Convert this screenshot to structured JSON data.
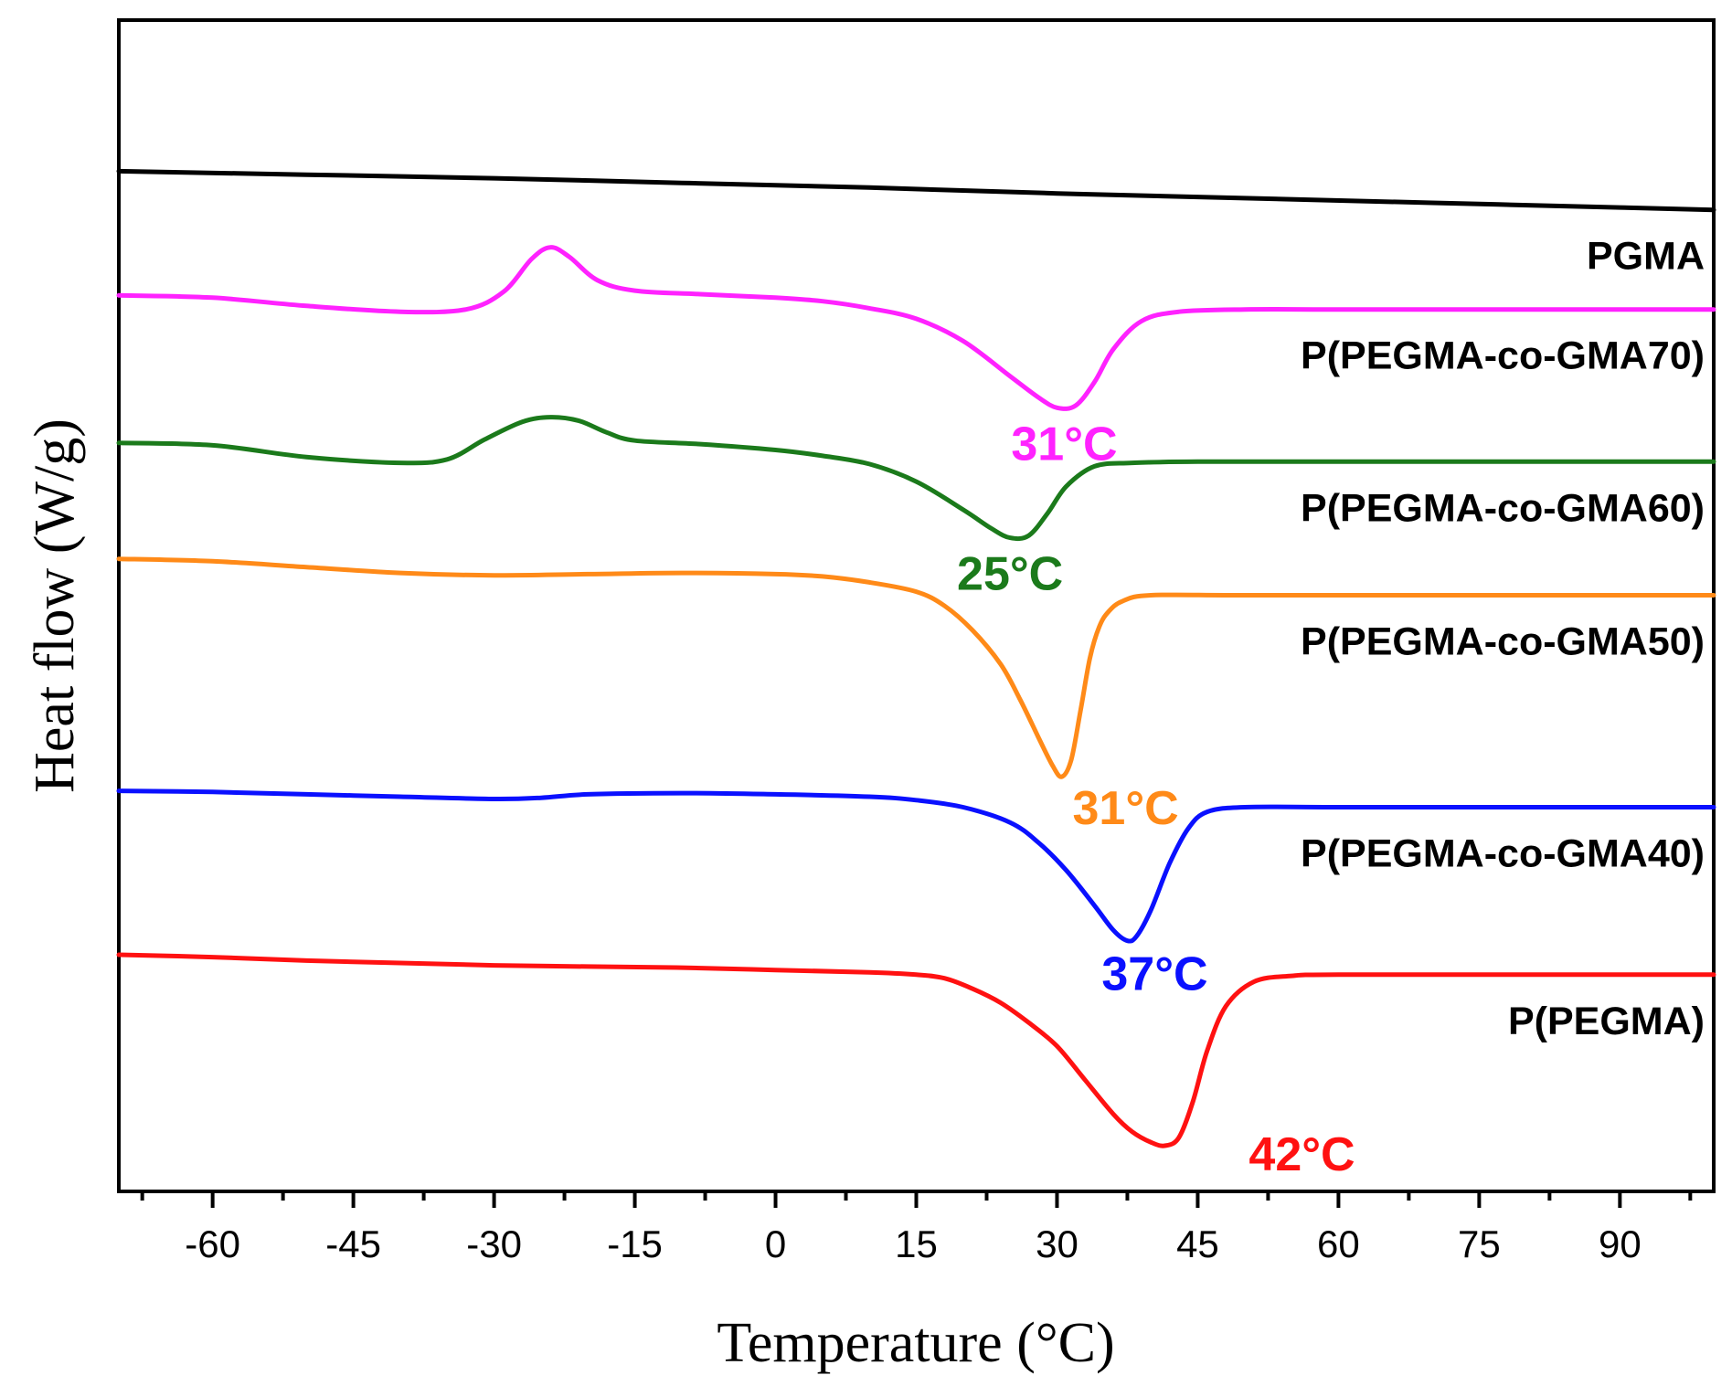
{
  "chart_data": {
    "type": "line",
    "xlabel": "Temperature (°C)",
    "ylabel": "Heat flow (W/g)",
    "xlim": [
      -70,
      100
    ],
    "x_ticks": [
      -60,
      -45,
      -30,
      -15,
      0,
      15,
      30,
      45,
      60,
      75,
      90
    ],
    "x_tick_labels": [
      "-60",
      "-45",
      "-30",
      "-15",
      "0",
      "15",
      "30",
      "45",
      "60",
      "75",
      "90"
    ],
    "ylim": [
      0,
      100
    ],
    "y_ticks_shown": false,
    "grid": false,
    "legend": "none (series labelled directly on the plot)",
    "series": [
      {
        "name": "PGMA",
        "color": "#000000",
        "points": [
          [
            -70,
            87.1
          ],
          [
            -50,
            86.8
          ],
          [
            -30,
            86.5
          ],
          [
            -10,
            86.1
          ],
          [
            10,
            85.7
          ],
          [
            30,
            85.2
          ],
          [
            50,
            84.8
          ],
          [
            70,
            84.4
          ],
          [
            90,
            84.0
          ],
          [
            100,
            83.8
          ]
        ]
      },
      {
        "name": "P(PEGMA-co-GMA70)",
        "color": "#ff22ff",
        "peak_label": "31°C",
        "points": [
          [
            -70,
            76.5
          ],
          [
            -60,
            76.3
          ],
          [
            -50,
            75.6
          ],
          [
            -40,
            75.1
          ],
          [
            -33,
            75.3
          ],
          [
            -29,
            76.8
          ],
          [
            -26,
            79.6
          ],
          [
            -24,
            80.6
          ],
          [
            -22,
            79.8
          ],
          [
            -19,
            77.8
          ],
          [
            -15,
            76.9
          ],
          [
            -8,
            76.6
          ],
          [
            0,
            76.3
          ],
          [
            5,
            76.0
          ],
          [
            10,
            75.4
          ],
          [
            15,
            74.5
          ],
          [
            20,
            72.6
          ],
          [
            25,
            69.6
          ],
          [
            28,
            67.8
          ],
          [
            30,
            66.9
          ],
          [
            32,
            67.1
          ],
          [
            34,
            69.1
          ],
          [
            36,
            71.9
          ],
          [
            39,
            74.3
          ],
          [
            43,
            75.1
          ],
          [
            50,
            75.3
          ],
          [
            60,
            75.3
          ],
          [
            80,
            75.3
          ],
          [
            100,
            75.3
          ]
        ]
      },
      {
        "name": "P(PEGMA-co-GMA60)",
        "color": "#1b7a1b",
        "peak_label": "25°C",
        "points": [
          [
            -70,
            63.9
          ],
          [
            -60,
            63.7
          ],
          [
            -50,
            62.7
          ],
          [
            -40,
            62.2
          ],
          [
            -35,
            62.5
          ],
          [
            -31,
            64.2
          ],
          [
            -27,
            65.7
          ],
          [
            -24,
            66.1
          ],
          [
            -21,
            65.8
          ],
          [
            -18,
            64.8
          ],
          [
            -15,
            64.1
          ],
          [
            -8,
            63.8
          ],
          [
            0,
            63.3
          ],
          [
            5,
            62.8
          ],
          [
            10,
            62.1
          ],
          [
            15,
            60.6
          ],
          [
            20,
            58.2
          ],
          [
            23,
            56.6
          ],
          [
            25,
            55.8
          ],
          [
            27,
            56.0
          ],
          [
            29,
            57.9
          ],
          [
            31,
            60.2
          ],
          [
            34,
            61.9
          ],
          [
            38,
            62.2
          ],
          [
            45,
            62.3
          ],
          [
            60,
            62.3
          ],
          [
            80,
            62.3
          ],
          [
            100,
            62.3
          ]
        ]
      },
      {
        "name": "P(PEGMA-co-GMA50)",
        "color": "#ff8a18",
        "peak_label": "31°C",
        "points": [
          [
            -70,
            54.0
          ],
          [
            -60,
            53.8
          ],
          [
            -50,
            53.3
          ],
          [
            -40,
            52.8
          ],
          [
            -30,
            52.6
          ],
          [
            -20,
            52.7
          ],
          [
            -10,
            52.8
          ],
          [
            0,
            52.7
          ],
          [
            5,
            52.5
          ],
          [
            10,
            52.0
          ],
          [
            15,
            51.2
          ],
          [
            18,
            50.0
          ],
          [
            21,
            47.9
          ],
          [
            24,
            45.0
          ],
          [
            26,
            42.1
          ],
          [
            28,
            38.8
          ],
          [
            29.5,
            36.4
          ],
          [
            30.5,
            35.4
          ],
          [
            31.5,
            36.8
          ],
          [
            32.5,
            41.0
          ],
          [
            33.5,
            45.5
          ],
          [
            34.5,
            48.2
          ],
          [
            35.5,
            49.5
          ],
          [
            37,
            50.4
          ],
          [
            40,
            50.9
          ],
          [
            50,
            50.9
          ],
          [
            70,
            50.9
          ],
          [
            100,
            50.9
          ]
        ]
      },
      {
        "name": "P(PEGMA-co-GMA40)",
        "color": "#0a10ff",
        "peak_label": "37°C",
        "points": [
          [
            -70,
            34.2
          ],
          [
            -60,
            34.1
          ],
          [
            -50,
            33.9
          ],
          [
            -40,
            33.7
          ],
          [
            -30,
            33.5
          ],
          [
            -25,
            33.6
          ],
          [
            -20,
            33.9
          ],
          [
            -10,
            34.0
          ],
          [
            0,
            33.9
          ],
          [
            10,
            33.7
          ],
          [
            15,
            33.4
          ],
          [
            20,
            32.8
          ],
          [
            25,
            31.5
          ],
          [
            28,
            29.8
          ],
          [
            31,
            27.4
          ],
          [
            34,
            24.4
          ],
          [
            36,
            22.3
          ],
          [
            37.5,
            21.4
          ],
          [
            38.5,
            21.8
          ],
          [
            40,
            24.0
          ],
          [
            42,
            28.0
          ],
          [
            44,
            31.0
          ],
          [
            46,
            32.4
          ],
          [
            50,
            32.8
          ],
          [
            60,
            32.8
          ],
          [
            80,
            32.8
          ],
          [
            100,
            32.8
          ]
        ]
      },
      {
        "name": "P(PEGMA)",
        "color": "#ff1111",
        "peak_label": "42°C",
        "points": [
          [
            -70,
            20.2
          ],
          [
            -60,
            20.0
          ],
          [
            -50,
            19.7
          ],
          [
            -40,
            19.5
          ],
          [
            -30,
            19.3
          ],
          [
            -20,
            19.2
          ],
          [
            -10,
            19.1
          ],
          [
            0,
            18.9
          ],
          [
            10,
            18.7
          ],
          [
            15,
            18.5
          ],
          [
            18,
            18.2
          ],
          [
            21,
            17.3
          ],
          [
            24,
            16.1
          ],
          [
            27,
            14.4
          ],
          [
            30,
            12.4
          ],
          [
            33,
            9.5
          ],
          [
            36,
            6.6
          ],
          [
            38,
            5.1
          ],
          [
            40,
            4.2
          ],
          [
            41.5,
            3.9
          ],
          [
            43,
            4.6
          ],
          [
            44.5,
            7.7
          ],
          [
            46,
            12.0
          ],
          [
            48,
            15.8
          ],
          [
            51,
            17.9
          ],
          [
            55,
            18.4
          ],
          [
            60,
            18.5
          ],
          [
            80,
            18.5
          ],
          [
            100,
            18.5
          ]
        ]
      }
    ]
  }
}
